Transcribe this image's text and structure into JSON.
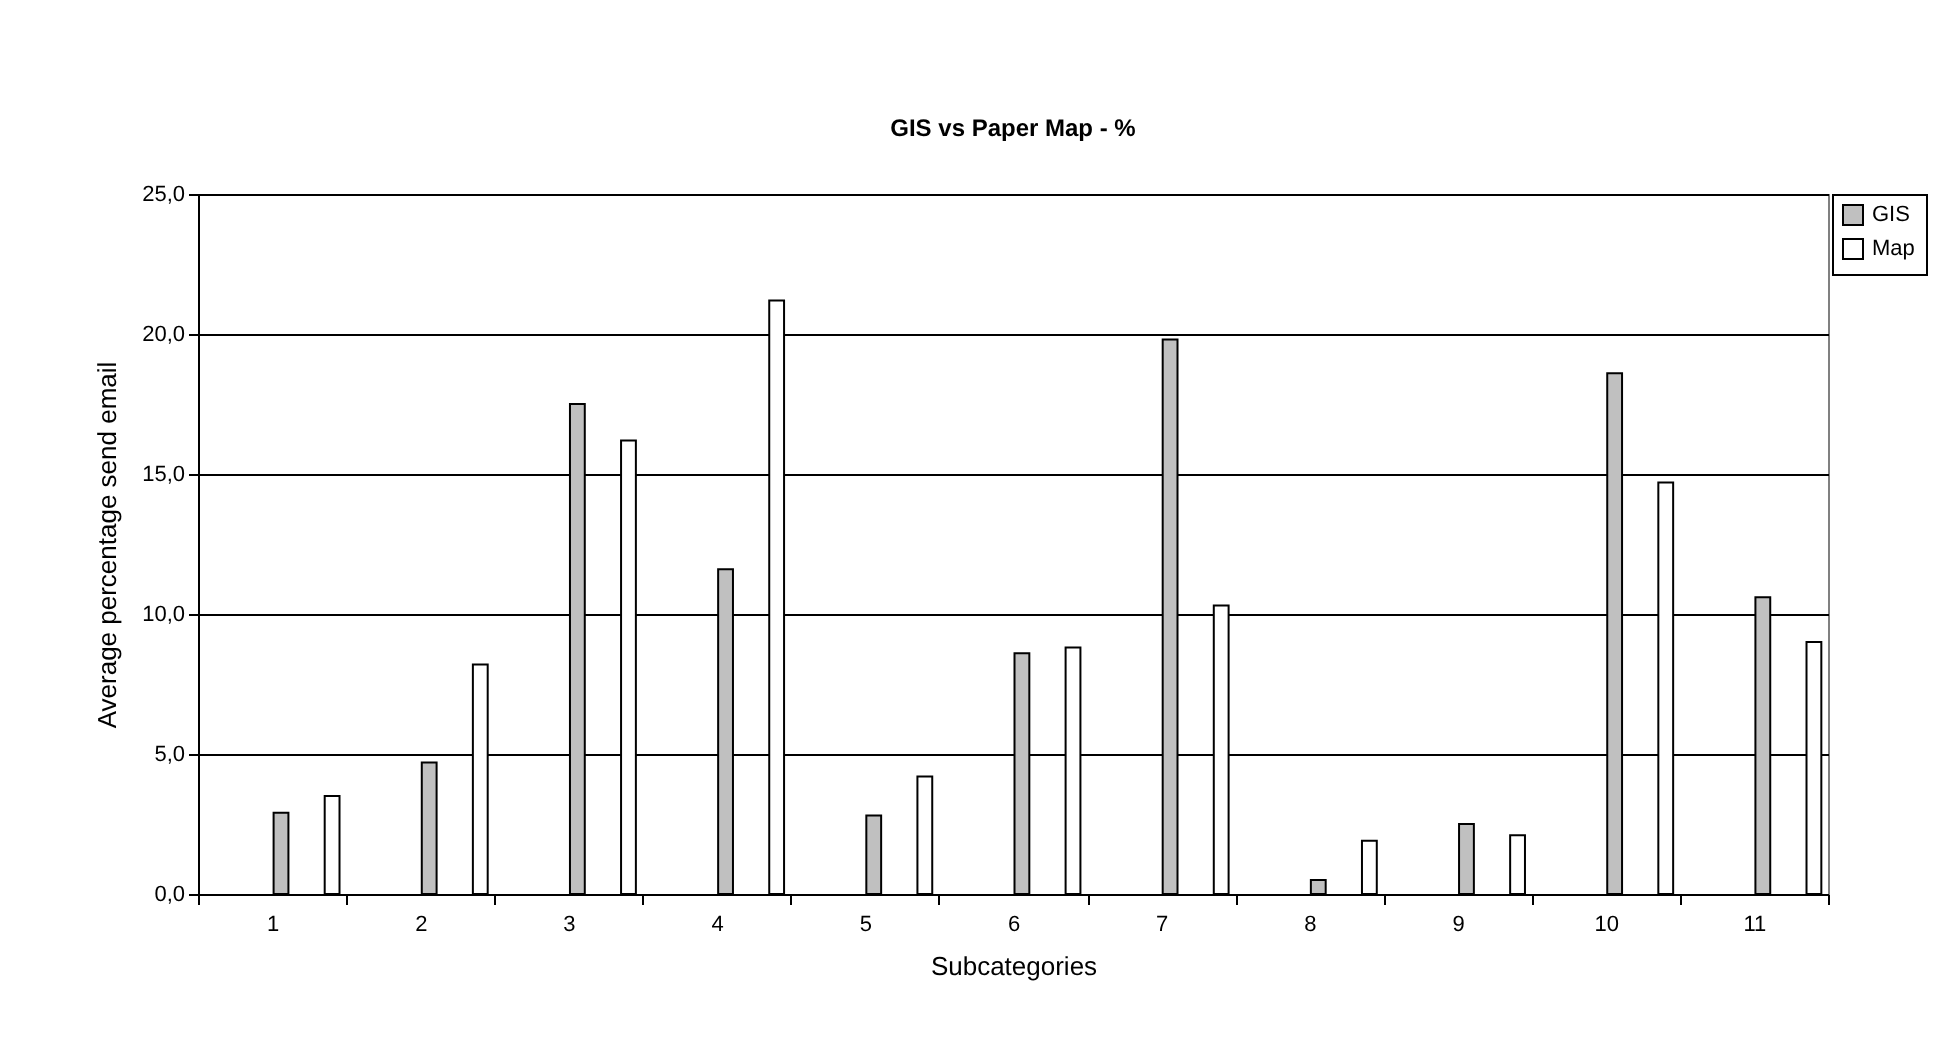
{
  "chart_data": {
    "type": "bar",
    "title": "GIS vs Paper Map - %",
    "xlabel": "Subcategories",
    "ylabel": "Average percentage send email",
    "categories": [
      "1",
      "2",
      "3",
      "4",
      "5",
      "6",
      "7",
      "8",
      "9",
      "10",
      "11"
    ],
    "series": [
      {
        "name": "GIS",
        "color": "#c0c0c0",
        "values": [
          2.9,
          4.7,
          17.5,
          11.6,
          2.8,
          8.6,
          19.8,
          0.5,
          2.5,
          18.6,
          10.6
        ]
      },
      {
        "name": "Map",
        "color": "#ffffff",
        "values": [
          3.5,
          8.2,
          16.2,
          21.2,
          4.2,
          8.8,
          10.3,
          1.9,
          2.1,
          14.7,
          9.0
        ]
      }
    ],
    "ylim": [
      0,
      25
    ],
    "yticks": [
      {
        "value": 0,
        "label": "0,0"
      },
      {
        "value": 5,
        "label": "5,0"
      },
      {
        "value": 10,
        "label": "10,0"
      },
      {
        "value": 15,
        "label": "15,0"
      },
      {
        "value": 20,
        "label": "20,0"
      },
      {
        "value": 25,
        "label": "25,0"
      }
    ],
    "grid": "y",
    "legend": "right"
  }
}
